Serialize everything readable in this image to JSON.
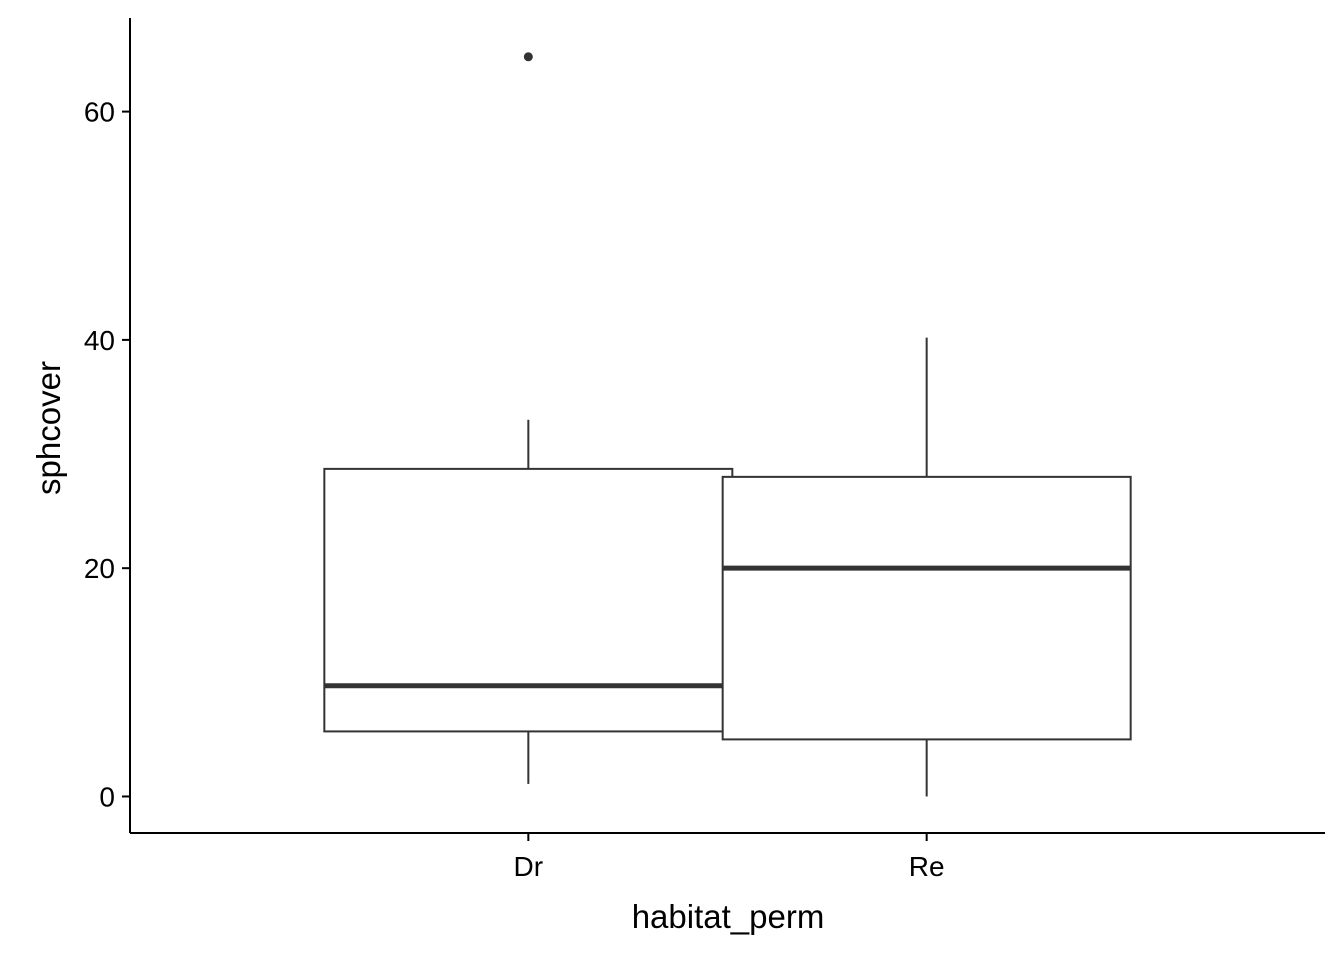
{
  "chart_data": {
    "type": "boxplot",
    "xlabel": "habitat_perm",
    "ylabel": "sphcover",
    "ylim": [
      -3.2,
      68.2
    ],
    "yticks": [
      0,
      20,
      40,
      60
    ],
    "ytick_labels": [
      "0",
      "20",
      "40",
      "60"
    ],
    "categories": [
      "Dr",
      "Re"
    ],
    "boxes": [
      {
        "category": "Dr",
        "whisker_low": 1.1,
        "q1": 5.7,
        "median": 9.7,
        "q3": 28.7,
        "whisker_high": 33.0,
        "outliers": [
          64.8
        ]
      },
      {
        "category": "Re",
        "whisker_low": 0.0,
        "q1": 5.0,
        "median": 20.0,
        "q3": 28.0,
        "whisker_high": 40.2,
        "outliers": []
      }
    ],
    "grid": false,
    "legend": "none",
    "colors": {
      "box_line": "#333333",
      "median": "#333333",
      "box_fill": "#ffffff",
      "axis": "#000000",
      "outlier": "#333333"
    }
  }
}
